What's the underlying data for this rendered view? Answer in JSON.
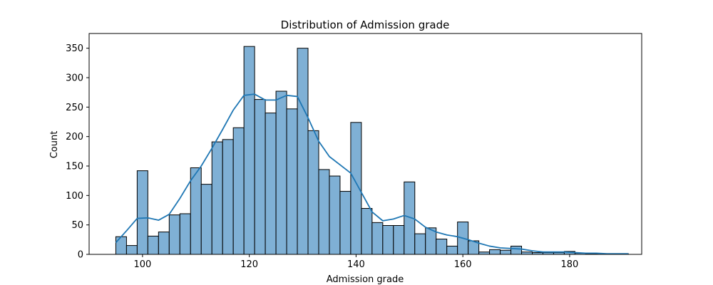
{
  "chart_data": {
    "type": "bar",
    "title": "Distribution of Admission grade",
    "xlabel": "Admission grade",
    "ylabel": "Count",
    "xlim": [
      90,
      193.5
    ],
    "ylim": [
      0,
      375
    ],
    "x_ticks": [
      100,
      120,
      140,
      160,
      180
    ],
    "y_ticks": [
      0,
      50,
      100,
      150,
      200,
      250,
      300,
      350
    ],
    "bin_edges": [
      95,
      97,
      99,
      101,
      103,
      105,
      107,
      109,
      111,
      113,
      115,
      117,
      119,
      121,
      123,
      125,
      127,
      129,
      131,
      133,
      135,
      137,
      139,
      141,
      143,
      145,
      147,
      149,
      151,
      153,
      155,
      157,
      159,
      161,
      163,
      165,
      167,
      169,
      171,
      173,
      175,
      177,
      179,
      181,
      183,
      185,
      187,
      189,
      191
    ],
    "series": [
      {
        "values": [
          30,
          15,
          142,
          31,
          38,
          67,
          69,
          147,
          119,
          191,
          195,
          215,
          353,
          263,
          240,
          277,
          247,
          350,
          210,
          144,
          133,
          107,
          224,
          78,
          54,
          49,
          49,
          123,
          35,
          45,
          26,
          14,
          55,
          23,
          4,
          8,
          7,
          14,
          4,
          3,
          3,
          3,
          5,
          2,
          1,
          1,
          1,
          1
        ],
        "bar_color": "#7fb0d5",
        "edge_color": "#000000"
      },
      {
        "kde_x": [
          95,
          97,
          99,
          101,
          103,
          105,
          107,
          109,
          111,
          113,
          115,
          117,
          119,
          121,
          123,
          125,
          127,
          129,
          131,
          133,
          135,
          137,
          139,
          141,
          143,
          145,
          147,
          149,
          151,
          153,
          155,
          157,
          159,
          161,
          163,
          165,
          167,
          169,
          171,
          173,
          175,
          177,
          179,
          181,
          183,
          185,
          187,
          189,
          191
        ],
        "kde_y": [
          20,
          40,
          61,
          62,
          58,
          68,
          95,
          125,
          150,
          180,
          212,
          245,
          270,
          272,
          262,
          262,
          270,
          268,
          232,
          192,
          166,
          152,
          138,
          105,
          72,
          57,
          60,
          66,
          60,
          46,
          38,
          33,
          30,
          25,
          19,
          14,
          11,
          10,
          9,
          6,
          4,
          4,
          4,
          3,
          2,
          2,
          1,
          1,
          1
        ],
        "line_color": "#1f77b4"
      }
    ],
    "grid": false
  }
}
